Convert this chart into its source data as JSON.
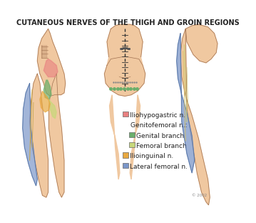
{
  "title": "CUTANEOUS NERVES OF THE THIGH AND GROIN REGIONS",
  "title_fontsize": 7,
  "title_color": "#222222",
  "legend_items": [
    {
      "label": "Iliohypogastric n.",
      "color": "#E88080",
      "indent": 0,
      "header": false
    },
    {
      "label": "Genitofemoral n.:",
      "color": null,
      "indent": 0,
      "header": true
    },
    {
      "label": "Genital branch",
      "color": "#6BAF6B",
      "indent": 1,
      "header": false
    },
    {
      "label": "Femoral branch",
      "color": "#C8D87A",
      "indent": 1,
      "header": false
    },
    {
      "label": "Ilioinguinal n.",
      "color": "#E8A840",
      "indent": 0,
      "header": false
    },
    {
      "label": "Lateral femoral n.",
      "color": "#7B96C8",
      "indent": 0,
      "header": false
    }
  ],
  "background_color": "#FFFFFF",
  "body_bg": "#F5DEB3",
  "blue_shade": "#7B96C8",
  "skin_color": "#F0C8A0"
}
